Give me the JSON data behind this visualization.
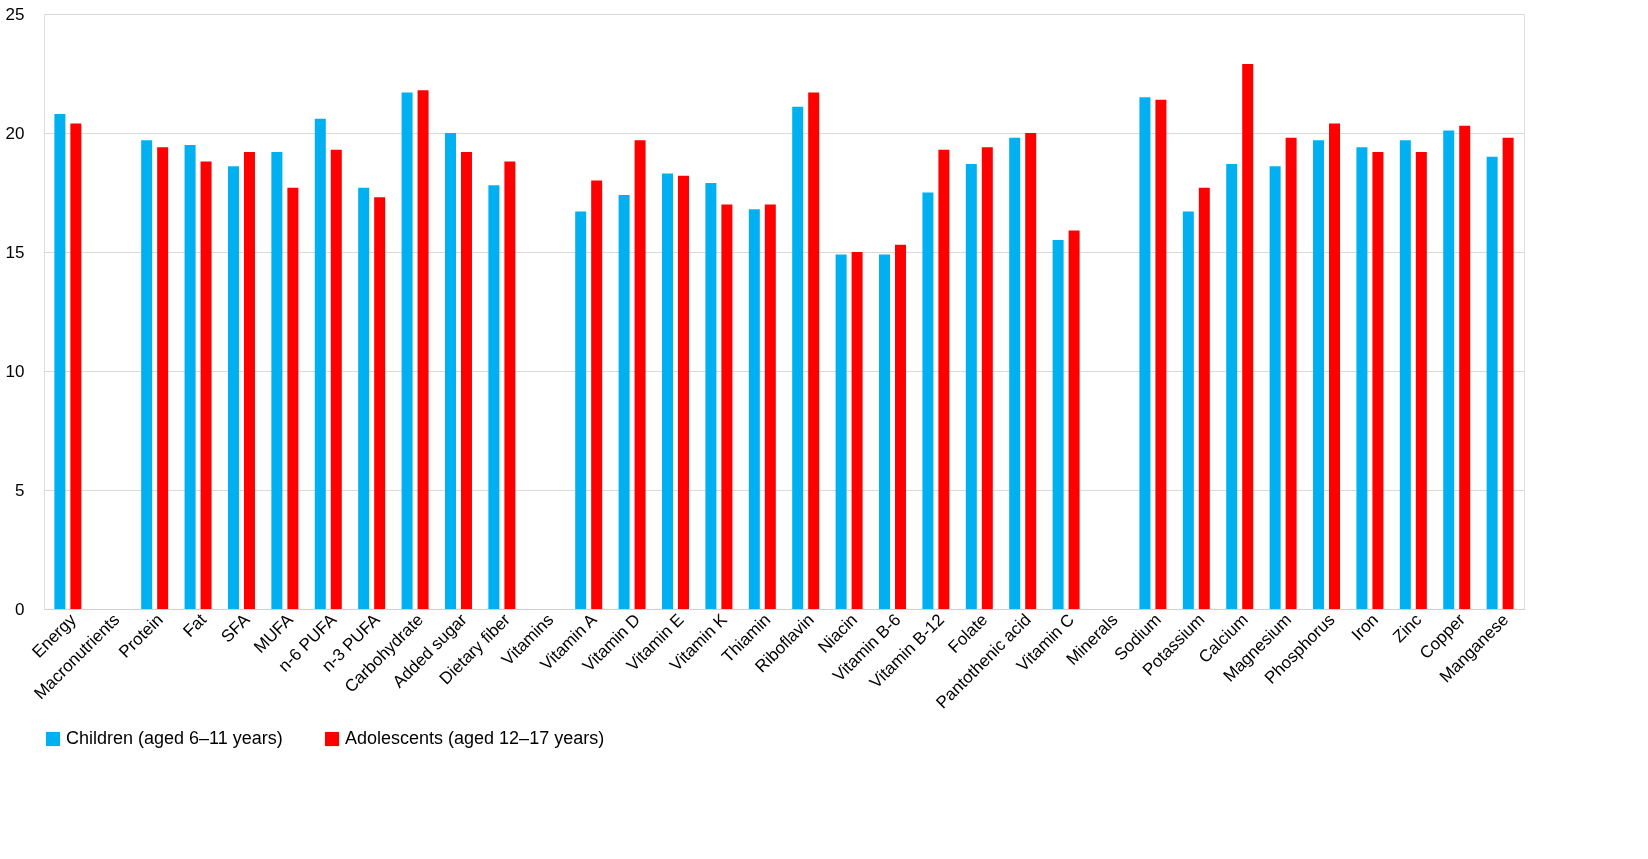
{
  "chart_data": {
    "type": "bar",
    "categories": [
      "Energy",
      "Macronutrients",
      "Protein",
      "Fat",
      "SFA",
      "MUFA",
      "n-6 PUFA",
      "n-3 PUFA",
      "Carbohydrate",
      "Added sugar",
      "Dietary fiber",
      "Vitamins",
      "Vitamin A",
      "Vitamin D",
      "Vitamin E",
      "Vitamin K",
      "Thiamin",
      "Riboflavin",
      "Niacin",
      "Vitamin B-6",
      "Vitamin B-12",
      "Folate",
      "Pantothenic acid",
      "Vitamin C",
      "Minerals",
      "Sodium",
      "Potassium",
      "Calcium",
      "Magnesium",
      "Phosphorus",
      "Iron",
      "Zinc",
      "Copper",
      "Manganese"
    ],
    "series": [
      {
        "name": "Children (aged 6–11 years)",
        "color": "#00b0f0",
        "values": [
          20.8,
          null,
          19.7,
          19.5,
          18.6,
          19.2,
          20.6,
          17.7,
          21.7,
          20.0,
          17.8,
          null,
          16.7,
          17.4,
          18.3,
          17.9,
          16.8,
          21.1,
          14.9,
          14.9,
          17.5,
          18.7,
          19.8,
          15.5,
          null,
          21.5,
          16.7,
          18.7,
          18.6,
          19.7,
          19.4,
          19.7,
          20.1,
          19.0
        ]
      },
      {
        "name": "Adolescents (aged 12–17 years)",
        "color": "#ff0000",
        "values": [
          20.4,
          null,
          19.4,
          18.8,
          19.2,
          17.7,
          19.3,
          17.3,
          21.8,
          19.2,
          18.8,
          null,
          18.0,
          19.7,
          18.2,
          17.0,
          17.0,
          21.7,
          15.0,
          15.3,
          19.3,
          19.4,
          20.0,
          15.9,
          null,
          21.4,
          17.7,
          22.9,
          19.8,
          20.4,
          19.2,
          19.2,
          20.3,
          19.8
        ]
      }
    ],
    "ylim": [
      0,
      25
    ],
    "yticks": [
      0,
      5,
      10,
      15,
      20,
      25
    ],
    "grid": "y",
    "legend": "bottom"
  }
}
